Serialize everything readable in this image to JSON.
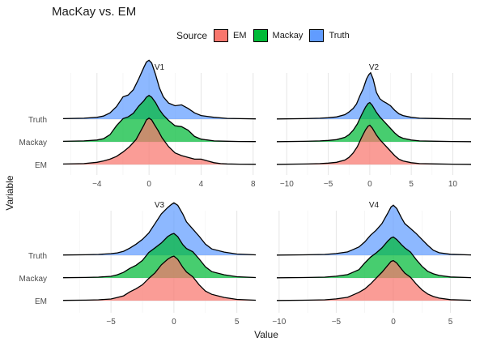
{
  "chart_data": {
    "type": "ridgeline",
    "title": "MacKay vs. EM",
    "xlabel": "Value",
    "ylabel": "Variable",
    "legend": {
      "title": "Source",
      "placement": "top",
      "entries": [
        {
          "name": "EM",
          "color": "#F8766D"
        },
        {
          "name": "Mackay",
          "color": "#00BA38"
        },
        {
          "name": "Truth",
          "color": "#619CFF"
        }
      ]
    },
    "rows": [
      "EM",
      "Mackay",
      "Truth"
    ],
    "grid": true,
    "panels": [
      {
        "name": "V1",
        "xlim": [
          -6.6,
          8.2
        ],
        "xticks": [
          -4,
          0,
          4,
          8
        ],
        "xtick_labels": [
          "−4",
          "0",
          "4",
          "8"
        ],
        "series": [
          {
            "name": "EM",
            "color": "#F8766D",
            "x": [
              -6.6,
              -5,
              -4,
              -3.5,
              -3,
              -2.5,
              -2,
              -1.5,
              -1,
              -0.7,
              -0.4,
              -0.2,
              0,
              0.2,
              0.4,
              0.7,
              1,
              1.5,
              2,
              2.5,
              3,
              3.5,
              4,
              4.5,
              5,
              5.5,
              6,
              7,
              8.2
            ],
            "y": [
              0.005,
              0.01,
              0.025,
              0.04,
              0.06,
              0.09,
              0.14,
              0.2,
              0.28,
              0.36,
              0.44,
              0.5,
              0.52,
              0.5,
              0.45,
              0.38,
              0.3,
              0.2,
              0.13,
              0.1,
              0.08,
              0.06,
              0.06,
              0.04,
              0.02,
              0.01,
              0.006,
              0.004,
              0.003
            ]
          },
          {
            "name": "Mackay",
            "color": "#00BA38",
            "x": [
              -6.6,
              -5,
              -4,
              -3.5,
              -3,
              -2.5,
              -2,
              -1.6,
              -1.2,
              -0.8,
              -0.4,
              -0.2,
              0,
              0.2,
              0.5,
              0.8,
              1.1,
              1.5,
              2,
              2.5,
              3,
              3.5,
              4,
              5,
              6,
              7,
              8.2
            ],
            "y": [
              0.005,
              0.01,
              0.02,
              0.035,
              0.08,
              0.18,
              0.26,
              0.28,
              0.32,
              0.4,
              0.46,
              0.5,
              0.52,
              0.5,
              0.44,
              0.36,
              0.3,
              0.24,
              0.18,
              0.17,
              0.13,
              0.06,
              0.03,
              0.01,
              0.006,
              0.004,
              0.003
            ]
          },
          {
            "name": "Truth",
            "color": "#619CFF",
            "x": [
              -6.6,
              -5,
              -4,
              -3.5,
              -3,
              -2.5,
              -2,
              -1.6,
              -1.2,
              -0.8,
              -0.4,
              -0.2,
              0,
              0.2,
              0.5,
              0.8,
              1.1,
              1.5,
              2,
              2.5,
              3,
              3.5,
              4,
              5,
              6,
              7,
              8.2
            ],
            "y": [
              0.005,
              0.01,
              0.02,
              0.035,
              0.07,
              0.14,
              0.25,
              0.27,
              0.33,
              0.45,
              0.58,
              0.64,
              0.66,
              0.63,
              0.5,
              0.35,
              0.25,
              0.18,
              0.15,
              0.16,
              0.12,
              0.07,
              0.04,
              0.02,
              0.008,
              0.005,
              0.003
            ]
          }
        ]
      },
      {
        "name": "V2",
        "xlim": [
          -11.2,
          12.2
        ],
        "xticks": [
          -10,
          -5,
          0,
          5,
          10
        ],
        "xtick_labels": [
          "−10",
          "−5",
          "0",
          "5",
          "10"
        ],
        "series": [
          {
            "name": "EM",
            "color": "#F8766D",
            "x": [
              -11.2,
              -8,
              -6,
              -5,
              -4,
              -3,
              -2.5,
              -2,
              -1.5,
              -1,
              -0.5,
              -0.2,
              0,
              0.3,
              0.8,
              1.2,
              1.6,
              2,
              2.5,
              3,
              3.5,
              4,
              5,
              6,
              8,
              10,
              12.2
            ],
            "y": [
              0.002,
              0.005,
              0.01,
              0.015,
              0.025,
              0.05,
              0.08,
              0.13,
              0.2,
              0.3,
              0.39,
              0.43,
              0.44,
              0.41,
              0.33,
              0.28,
              0.24,
              0.2,
              0.15,
              0.1,
              0.06,
              0.04,
              0.02,
              0.01,
              0.006,
              0.004,
              0.002
            ]
          },
          {
            "name": "Mackay",
            "color": "#00BA38",
            "x": [
              -11.2,
              -8,
              -6,
              -5,
              -4,
              -3,
              -2.5,
              -2,
              -1.5,
              -1,
              -0.5,
              -0.2,
              0,
              0.3,
              0.8,
              1.2,
              1.6,
              2,
              2.5,
              3,
              3.5,
              4,
              5,
              6,
              8,
              10,
              12.2
            ],
            "y": [
              0.002,
              0.005,
              0.01,
              0.015,
              0.025,
              0.05,
              0.08,
              0.13,
              0.2,
              0.3,
              0.39,
              0.43,
              0.44,
              0.41,
              0.33,
              0.28,
              0.24,
              0.2,
              0.15,
              0.1,
              0.06,
              0.04,
              0.02,
              0.01,
              0.006,
              0.004,
              0.002
            ]
          },
          {
            "name": "Truth",
            "color": "#619CFF",
            "x": [
              -11.2,
              -8,
              -6,
              -5,
              -4,
              -3,
              -2.5,
              -2,
              -1.6,
              -1.2,
              -0.8,
              -0.4,
              -0.1,
              0.1,
              0.4,
              0.8,
              1.2,
              1.6,
              2,
              2.5,
              3,
              3.5,
              4,
              5,
              6,
              8,
              10,
              12.2
            ],
            "y": [
              0.002,
              0.005,
              0.01,
              0.015,
              0.025,
              0.05,
              0.08,
              0.12,
              0.17,
              0.26,
              0.34,
              0.45,
              0.5,
              0.52,
              0.45,
              0.3,
              0.23,
              0.2,
              0.18,
              0.15,
              0.1,
              0.06,
              0.04,
              0.02,
              0.01,
              0.006,
              0.004,
              0.002
            ]
          }
        ]
      },
      {
        "name": "V3",
        "xlim": [
          -8.8,
          6.5
        ],
        "xticks": [
          -5,
          0,
          5
        ],
        "xtick_labels": [
          "−5",
          "0",
          "5"
        ],
        "series": [
          {
            "name": "EM",
            "color": "#F8766D",
            "x": [
              -8.8,
              -7,
              -6,
              -5,
              -4.5,
              -4,
              -3.5,
              -3,
              -2.5,
              -2,
              -1.5,
              -1,
              -0.5,
              -0.2,
              0,
              0.3,
              0.7,
              1,
              1.5,
              2,
              2.5,
              3,
              4,
              5,
              6.5
            ],
            "y": [
              0.003,
              0.006,
              0.01,
              0.02,
              0.04,
              0.06,
              0.11,
              0.15,
              0.2,
              0.28,
              0.35,
              0.45,
              0.52,
              0.55,
              0.56,
              0.52,
              0.42,
              0.36,
              0.3,
              0.2,
              0.12,
              0.08,
              0.04,
              0.015,
              0.005
            ]
          },
          {
            "name": "Mackay",
            "color": "#00BA38",
            "x": [
              -8.8,
              -7,
              -6,
              -5,
              -4.5,
              -4,
              -3.5,
              -3,
              -2.5,
              -2,
              -1.5,
              -1,
              -0.5,
              -0.2,
              0,
              0.3,
              0.7,
              1,
              1.5,
              2,
              2.5,
              3,
              4,
              5,
              6.5
            ],
            "y": [
              0.003,
              0.006,
              0.01,
              0.02,
              0.04,
              0.07,
              0.12,
              0.16,
              0.22,
              0.32,
              0.38,
              0.44,
              0.52,
              0.55,
              0.56,
              0.52,
              0.42,
              0.37,
              0.33,
              0.24,
              0.14,
              0.08,
              0.04,
              0.015,
              0.005
            ]
          },
          {
            "name": "Truth",
            "color": "#619CFF",
            "x": [
              -8.8,
              -7,
              -6,
              -5,
              -4.5,
              -4,
              -3.5,
              -3,
              -2.5,
              -2,
              -1.5,
              -1,
              -0.5,
              -0.2,
              0,
              0.3,
              0.7,
              1,
              1.5,
              2,
              2.5,
              3,
              4,
              5,
              6.5
            ],
            "y": [
              0.003,
              0.006,
              0.01,
              0.02,
              0.03,
              0.05,
              0.09,
              0.14,
              0.2,
              0.28,
              0.4,
              0.52,
              0.6,
              0.64,
              0.66,
              0.63,
              0.52,
              0.42,
              0.33,
              0.24,
              0.14,
              0.08,
              0.04,
              0.015,
              0.005
            ]
          }
        ]
      },
      {
        "name": "V4",
        "xlim": [
          -10.2,
          6.8
        ],
        "xticks": [
          -10,
          -5,
          0,
          5
        ],
        "xtick_labels": [
          "−10",
          "−5",
          "0",
          "5"
        ],
        "series": [
          {
            "name": "EM",
            "color": "#F8766D",
            "x": [
              -10.2,
              -8,
              -6,
              -5,
              -4,
              -3.5,
              -3,
              -2.5,
              -2,
              -1.5,
              -1,
              -0.5,
              -0.2,
              0,
              0.3,
              0.7,
              1,
              1.5,
              2,
              2.5,
              3,
              3.5,
              4,
              5,
              6.8
            ],
            "y": [
              0.002,
              0.005,
              0.01,
              0.02,
              0.04,
              0.07,
              0.1,
              0.14,
              0.2,
              0.27,
              0.34,
              0.42,
              0.47,
              0.48,
              0.45,
              0.38,
              0.33,
              0.28,
              0.2,
              0.13,
              0.08,
              0.05,
              0.03,
              0.012,
              0.004
            ]
          },
          {
            "name": "Mackay",
            "color": "#00BA38",
            "x": [
              -10.2,
              -8,
              -6,
              -5,
              -4,
              -3.5,
              -3,
              -2.5,
              -2,
              -1.5,
              -1,
              -0.5,
              -0.2,
              0,
              0.3,
              0.7,
              1,
              1.5,
              2,
              2.5,
              3,
              3.5,
              4,
              5,
              6.8
            ],
            "y": [
              0.002,
              0.005,
              0.01,
              0.02,
              0.04,
              0.07,
              0.1,
              0.18,
              0.25,
              0.3,
              0.36,
              0.44,
              0.48,
              0.49,
              0.46,
              0.4,
              0.36,
              0.31,
              0.22,
              0.14,
              0.08,
              0.05,
              0.03,
              0.012,
              0.004
            ]
          },
          {
            "name": "Truth",
            "color": "#619CFF",
            "x": [
              -10.2,
              -8,
              -6,
              -5,
              -4,
              -3.5,
              -3,
              -2.5,
              -2,
              -1.5,
              -1,
              -0.5,
              -0.2,
              0,
              0.3,
              0.7,
              1,
              1.5,
              2,
              2.5,
              3,
              3.5,
              4,
              5,
              6.8
            ],
            "y": [
              0.002,
              0.005,
              0.01,
              0.02,
              0.04,
              0.07,
              0.1,
              0.16,
              0.24,
              0.3,
              0.38,
              0.5,
              0.58,
              0.6,
              0.56,
              0.45,
              0.38,
              0.32,
              0.26,
              0.19,
              0.12,
              0.06,
              0.03,
              0.012,
              0.004
            ]
          }
        ]
      }
    ]
  }
}
